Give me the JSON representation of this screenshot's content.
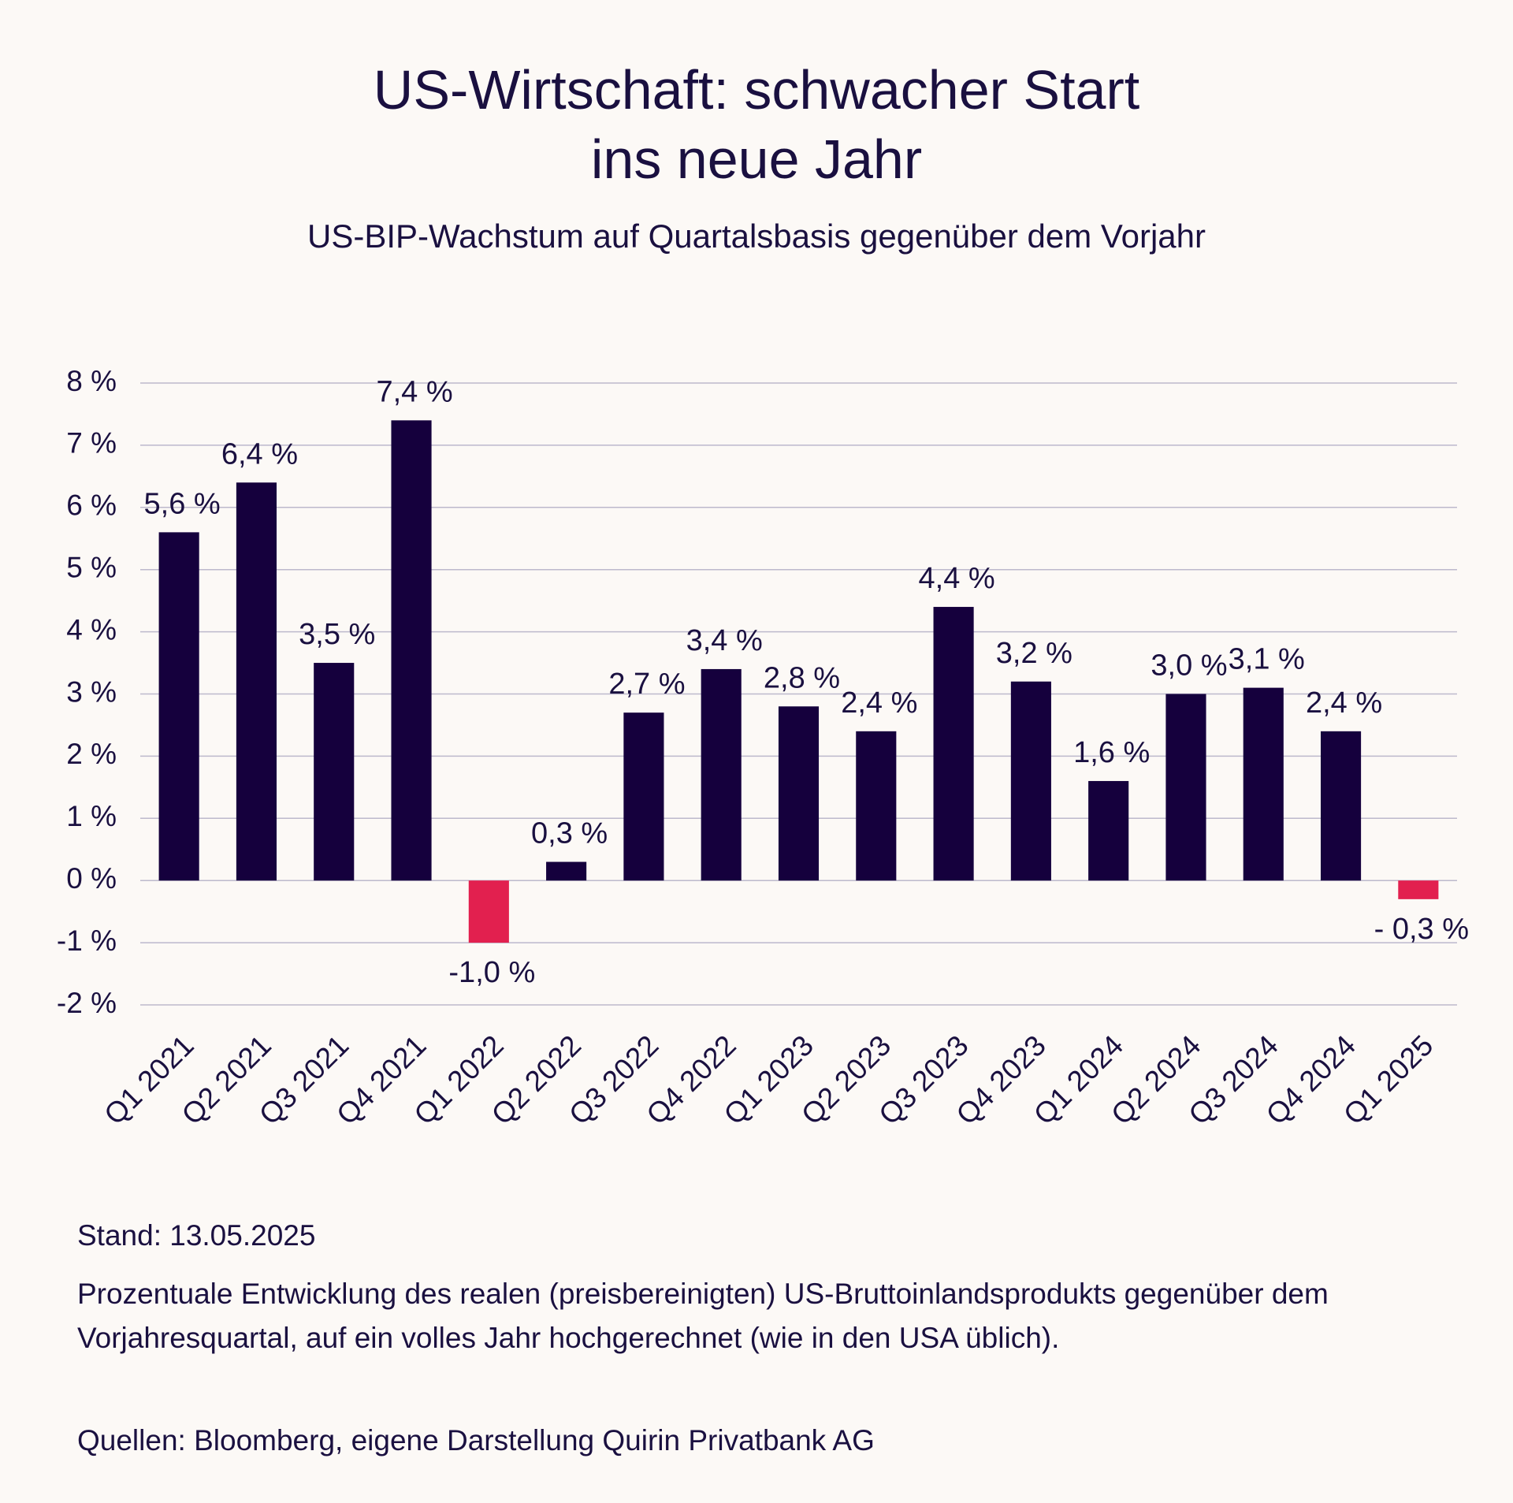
{
  "chart_data": {
    "type": "bar",
    "title": [
      "US-Wirtschaft: schwacher Start",
      "ins neue Jahr"
    ],
    "subtitle": "US-BIP-Wachstum auf Quartalsbasis gegenüber dem Vorjahr",
    "categories": [
      "Q1 2021",
      "Q2 2021",
      "Q3 2021",
      "Q4 2021",
      "Q1 2022",
      "Q2 2022",
      "Q3 2022",
      "Q4 2022",
      "Q1 2023",
      "Q2 2023",
      "Q3 2023",
      "Q4 2023",
      "Q1 2024",
      "Q2 2024",
      "Q3 2024",
      "Q4 2024",
      "Q1 2025"
    ],
    "values": [
      5.6,
      6.4,
      3.5,
      7.4,
      -1.0,
      0.3,
      2.7,
      3.4,
      2.8,
      2.4,
      4.4,
      3.2,
      1.6,
      3.0,
      3.1,
      2.4,
      -0.3
    ],
    "value_labels": [
      "5,6 %",
      "6,4 %",
      "3,5 %",
      "7,4 %",
      "-1,0 %",
      "0,3 %",
      "2,7 %",
      "3,4 %",
      "2,8 %",
      "2,4 %",
      "4,4 %",
      "3,2 %",
      "1,6 %",
      "3,0 %",
      "3,1 %",
      "2,4 %",
      "- 0,3 %"
    ],
    "color": "#15003d",
    "negative_color": "#e2204f",
    "ylim": [
      -2,
      8
    ],
    "yticks": [
      {
        "value": -2,
        "label": "-2 %"
      },
      {
        "value": -1,
        "label": "-1 %"
      },
      {
        "value": 0,
        "label": "0 %"
      },
      {
        "value": 1,
        "label": "1 %"
      },
      {
        "value": 2,
        "label": "2 %"
      },
      {
        "value": 3,
        "label": "3 %"
      },
      {
        "value": 4,
        "label": "4 %"
      },
      {
        "value": 5,
        "label": "5 %"
      },
      {
        "value": 6,
        "label": "6 %"
      },
      {
        "value": 7,
        "label": "7 %"
      },
      {
        "value": 8,
        "label": "8 %"
      }
    ],
    "grid": true,
    "footer": [
      "Stand: 13.05.2025",
      "Prozentuale Entwicklung des realen (preisbereinigten) US-Bruttoinlandsprodukts gegenüber dem Vorjahresquartal, auf ein volles Jahr hochgerechnet (wie in den USA üblich).",
      "Quellen: Bloomberg, eigene Darstellung Quirin Privatbank AG"
    ]
  }
}
